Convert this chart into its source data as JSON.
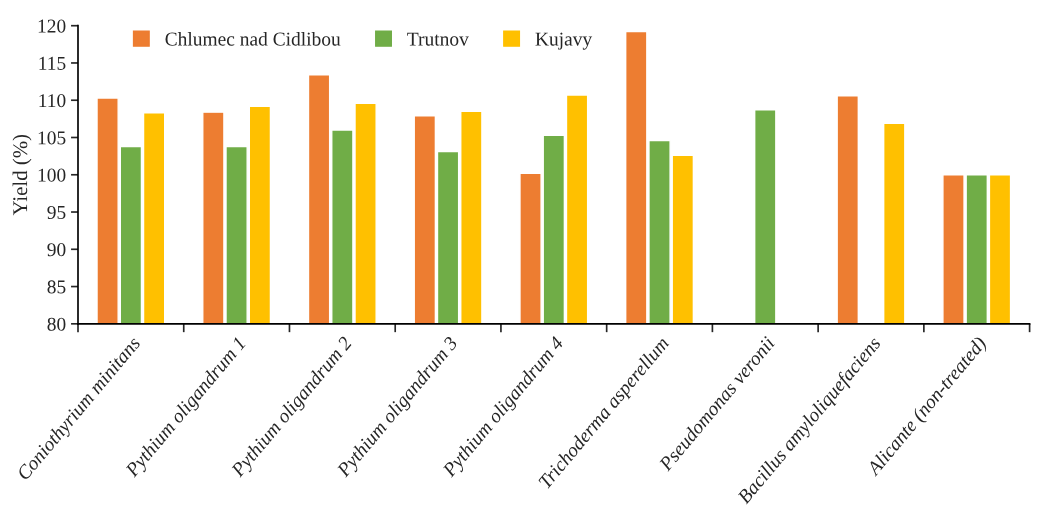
{
  "chart_data": {
    "type": "bar",
    "ylabel": "Yield (%)",
    "categories": [
      "Coniothyrium minitans",
      "Pythium oligandrum 1",
      "Pythium oligandrum 2",
      "Pythium oligandrum 3",
      "Pythium oligandrum 4",
      "Trichoderma asperellum",
      "Pseudomonas veronii",
      "Bacillus amyloliquefaciens",
      "Alicante (non-treated)"
    ],
    "series": [
      {
        "name": "Chlumec nad Cidlibou",
        "color": "#ed7d31",
        "values": [
          110.3,
          108.4,
          113.4,
          107.9,
          100.2,
          119.2,
          null,
          110.6,
          100
        ]
      },
      {
        "name": "Trutnov",
        "color": "#70ad47",
        "values": [
          103.8,
          103.8,
          106.0,
          103.1,
          105.3,
          104.6,
          108.7,
          null,
          100
        ]
      },
      {
        "name": "Kujavy",
        "color": "#ffc000",
        "values": [
          108.3,
          109.2,
          109.6,
          108.5,
          110.7,
          102.6,
          null,
          106.9,
          100
        ]
      }
    ],
    "ylim": [
      80,
      120
    ],
    "yticks": [
      80,
      85,
      90,
      95,
      100,
      105,
      110,
      115,
      120
    ],
    "grid": false,
    "legend": "top left"
  }
}
